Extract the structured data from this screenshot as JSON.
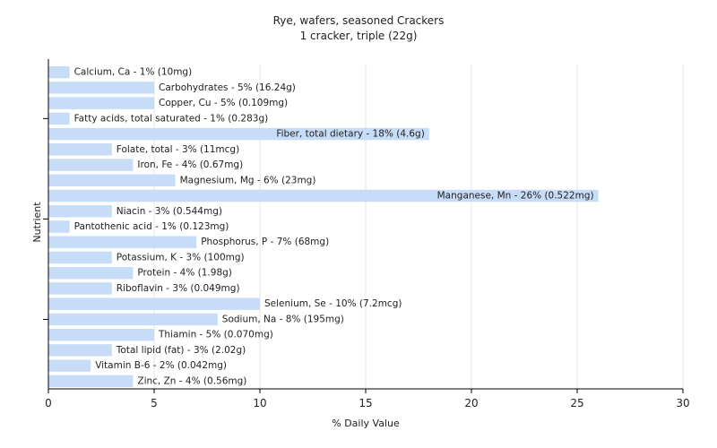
{
  "chart_data": {
    "type": "bar",
    "orientation": "horizontal",
    "title": "Rye, wafers, seasoned Crackers",
    "subtitle": "1 cracker, triple (22g)",
    "xlabel": "% Daily Value",
    "ylabel": "Nutrient",
    "xlim": [
      0,
      30
    ],
    "xticks": [
      0,
      5,
      10,
      15,
      20,
      25,
      30
    ],
    "grid": true,
    "bar_color": "#c6dcf7",
    "categories": [
      "Calcium, Ca",
      "Carbohydrates",
      "Copper, Cu",
      "Fatty acids, total saturated",
      "Fiber, total dietary",
      "Folate, total",
      "Iron, Fe",
      "Magnesium, Mg",
      "Manganese, Mn",
      "Niacin",
      "Pantothenic acid",
      "Phosphorus, P",
      "Potassium, K",
      "Protein",
      "Riboflavin",
      "Selenium, Se",
      "Sodium, Na",
      "Thiamin",
      "Total lipid (fat)",
      "Vitamin B-6",
      "Zinc, Zn"
    ],
    "values": [
      1,
      5,
      5,
      1,
      18,
      3,
      4,
      6,
      26,
      3,
      1,
      7,
      3,
      4,
      3,
      10,
      8,
      5,
      3,
      2,
      4
    ],
    "labels": [
      "Calcium, Ca - 1% (10mg)",
      "Carbohydrates - 5% (16.24g)",
      "Copper, Cu - 5% (0.109mg)",
      "Fatty acids, total saturated - 1% (0.283g)",
      "Fiber, total dietary - 18% (4.6g)",
      "Folate, total - 3% (11mcg)",
      "Iron, Fe - 4% (0.67mg)",
      "Magnesium, Mg - 6% (23mg)",
      "Manganese, Mn - 26% (0.522mg)",
      "Niacin - 3% (0.544mg)",
      "Pantothenic acid - 1% (0.123mg)",
      "Phosphorus, P - 7% (68mg)",
      "Potassium, K - 3% (100mg)",
      "Protein - 4% (1.98g)",
      "Riboflavin - 3% (0.049mg)",
      "Selenium, Se - 10% (7.2mcg)",
      "Sodium, Na - 8% (195mg)",
      "Thiamin - 5% (0.070mg)",
      "Total lipid (fat) - 3% (2.02g)",
      "Vitamin B-6 - 2% (0.042mg)",
      "Zinc, Zn - 4% (0.56mg)"
    ]
  }
}
